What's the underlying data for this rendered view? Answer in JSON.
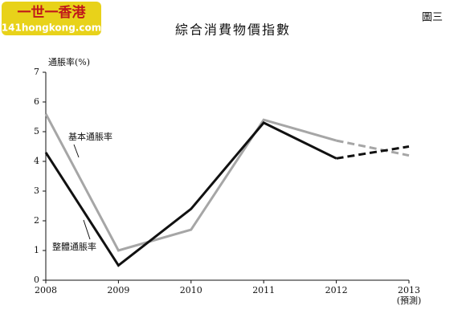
{
  "watermark": {
    "name": "一世一香港",
    "site": "141hongkong.com"
  },
  "chart_data": {
    "type": "line",
    "title": "綜合消費物價指數",
    "figure_label": "圖三",
    "y_label": "通脹率(%)",
    "forecast_label": "(預測)",
    "categories": [
      "2008",
      "2009",
      "2010",
      "2011",
      "2012",
      "2013"
    ],
    "series": [
      {
        "name": "基本通脹率",
        "color": "#a6a6a6",
        "values": [
          5.6,
          1.0,
          1.7,
          5.4,
          4.7,
          4.2
        ]
      },
      {
        "name": "整體通脹率",
        "color": "#111111",
        "values": [
          4.3,
          0.5,
          2.4,
          5.3,
          4.1,
          4.5
        ]
      }
    ],
    "ylim": [
      0,
      7
    ],
    "yticks": [
      0,
      1,
      2,
      3,
      4,
      5,
      6,
      7
    ]
  }
}
